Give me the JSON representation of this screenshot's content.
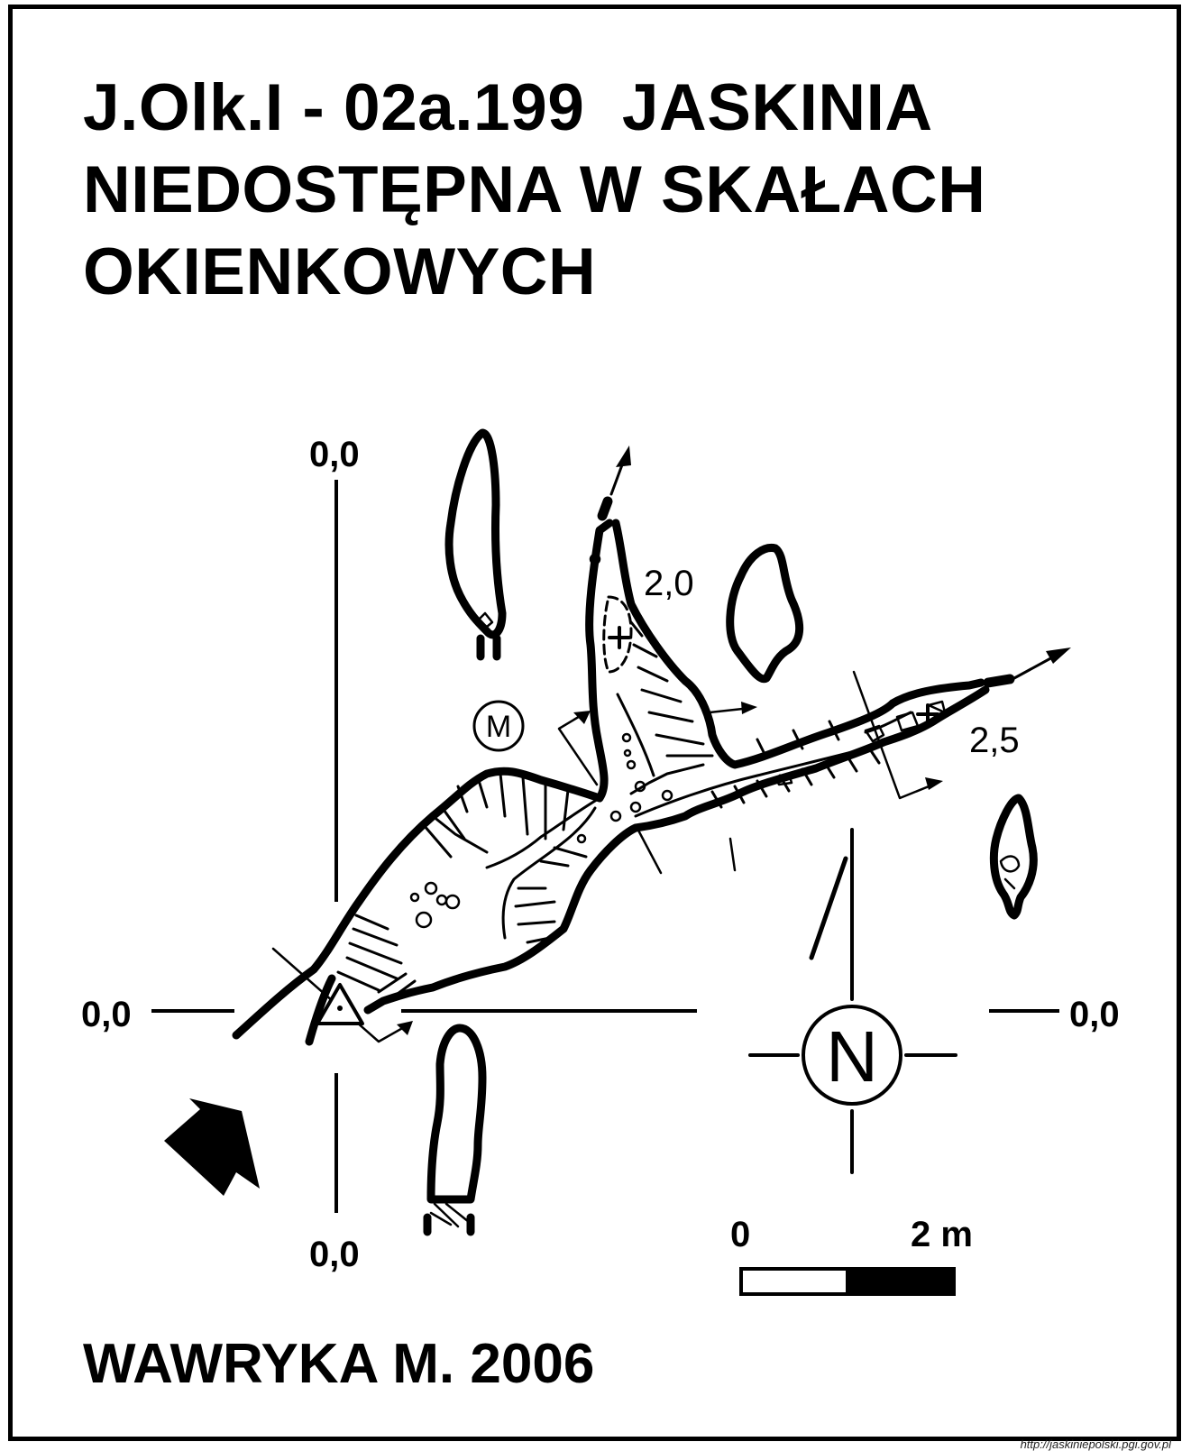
{
  "title": {
    "line1": "J.Olk.I - 02a.199  JASKINIA",
    "line2": "NIEDOSTĘPNA W SKAŁACH",
    "line3": "OKIENKOWYCH"
  },
  "section_labels": {
    "top": "0,0",
    "bottom": "0,0",
    "left": "0,0",
    "right": "0,0"
  },
  "depth_labels": {
    "upper_branch": "2,0",
    "east_branch": "2,5"
  },
  "symbols": {
    "station_marker": "M",
    "north_letter": "N"
  },
  "scale_bar": {
    "start_label": "0",
    "end_label": "2 m",
    "fill_colors": [
      "#ffffff",
      "#000000"
    ]
  },
  "author": "WAWRYKA M. 2006",
  "source_url": "http://jaskiniepolski.pgi.gov.pl",
  "icons": [
    "north-arrow-icon",
    "entrance-arrow-icon",
    "survey-station-icon",
    "continuation-arrow-icon"
  ]
}
